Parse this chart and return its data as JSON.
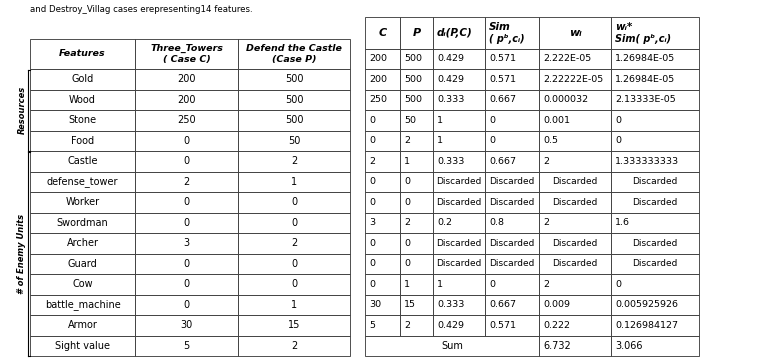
{
  "title_left": "and Destroy_Villag cases erepresenting14 features.",
  "left_table": {
    "headers": [
      "Features",
      "Three_Towers\n( Case C)",
      "Defend the Castle\n(Case P)"
    ],
    "rows": [
      [
        "Gold",
        "200",
        "500"
      ],
      [
        "Wood",
        "200",
        "500"
      ],
      [
        "Stone",
        "250",
        "500"
      ],
      [
        "Food",
        "0",
        "50"
      ],
      [
        "Castle",
        "0",
        "2"
      ],
      [
        "defense_tower",
        "2",
        "1"
      ],
      [
        "Worker",
        "0",
        "0"
      ],
      [
        "Swordman",
        "0",
        "0"
      ],
      [
        "Archer",
        "3",
        "2"
      ],
      [
        "Guard",
        "0",
        "0"
      ],
      [
        "Cow",
        "0",
        "0"
      ],
      [
        "battle_machine",
        "0",
        "1"
      ],
      [
        "Armor",
        "30",
        "15"
      ],
      [
        "Sight value",
        "5",
        "2"
      ]
    ],
    "resources_rows": 4,
    "enemy_rows": 10
  },
  "right_table": {
    "rows": [
      [
        "200",
        "500",
        "0.429",
        "0.571",
        "2.222E-05",
        "1.26984E-05"
      ],
      [
        "200",
        "500",
        "0.429",
        "0.571",
        "2.22222E-05",
        "1.26984E-05"
      ],
      [
        "250",
        "500",
        "0.333",
        "0.667",
        "0.000032",
        "2.13333E-05"
      ],
      [
        "0",
        "50",
        "1",
        "0",
        "0.001",
        "0"
      ],
      [
        "0",
        "2",
        "1",
        "0",
        "0.5",
        "0"
      ],
      [
        "2",
        "1",
        "0.333",
        "0.667",
        "2",
        "1.333333333"
      ],
      [
        "0",
        "0",
        "Discarded",
        "Discarded",
        "Discarded",
        "Discarded"
      ],
      [
        "0",
        "0",
        "Discarded",
        "Discarded",
        "Discarded",
        "Discarded"
      ],
      [
        "3",
        "2",
        "0.2",
        "0.8",
        "2",
        "1.6"
      ],
      [
        "0",
        "0",
        "Discarded",
        "Discarded",
        "Discarded",
        "Discarded"
      ],
      [
        "0",
        "0",
        "Discarded",
        "Discarded",
        "Discarded",
        "Discarded"
      ],
      [
        "0",
        "1",
        "1",
        "0",
        "2",
        "0"
      ],
      [
        "30",
        "15",
        "0.333",
        "0.667",
        "0.009",
        "0.005925926"
      ],
      [
        "5",
        "2",
        "0.429",
        "0.571",
        "0.222",
        "0.126984127"
      ]
    ],
    "sum_values": [
      "6.732",
      "3.066"
    ]
  }
}
